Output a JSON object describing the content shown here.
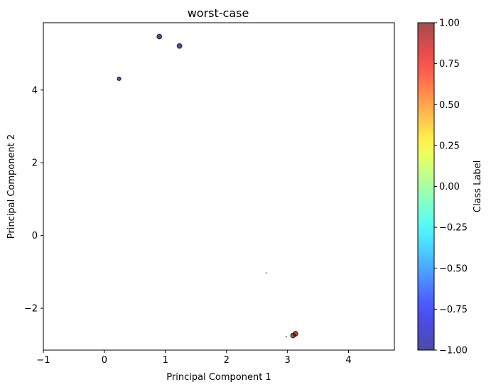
{
  "chart_data": {
    "type": "scatter",
    "title": "worst-case",
    "xlabel": "Principal Component 1",
    "ylabel": "Principal Component 2",
    "xlim": [
      -1.0,
      4.75
    ],
    "ylim": [
      -3.15,
      5.85
    ],
    "xticks": [
      -1,
      0,
      1,
      2,
      3,
      4
    ],
    "yticks": [
      -2,
      0,
      2,
      4
    ],
    "grid": false,
    "points": [
      {
        "x": 0.9,
        "y": 5.47,
        "label": -1,
        "size": "medium"
      },
      {
        "x": 1.23,
        "y": 5.21,
        "label": -1,
        "size": "medium"
      },
      {
        "x": 0.24,
        "y": 4.31,
        "label": -1,
        "size": "small"
      },
      {
        "x": 2.65,
        "y": -1.03,
        "label": 1,
        "size": "tiny"
      },
      {
        "x": 2.98,
        "y": -2.78,
        "label": 1,
        "size": "tiny"
      },
      {
        "x": 3.13,
        "y": -2.7,
        "label": 1,
        "size": "medium"
      },
      {
        "x": 3.09,
        "y": -2.75,
        "label": 1,
        "size": "medium"
      }
    ],
    "colorbar": {
      "label": "Class Label",
      "colormap": "jet",
      "alpha": 0.7,
      "range": [
        -1.0,
        1.0
      ],
      "ticks": [
        -1.0,
        -0.75,
        -0.5,
        -0.25,
        0.0,
        0.25,
        0.5,
        0.75,
        1.0
      ],
      "tick_labels": [
        "−1.00",
        "−0.75",
        "−0.50",
        "−0.25",
        "0.00",
        "0.25",
        "0.50",
        "0.75",
        "1.00"
      ]
    },
    "tick_labels": {
      "x": [
        "−1",
        "0",
        "1",
        "2",
        "3",
        "4"
      ],
      "y": [
        "−2",
        "0",
        "2",
        "4"
      ]
    }
  }
}
